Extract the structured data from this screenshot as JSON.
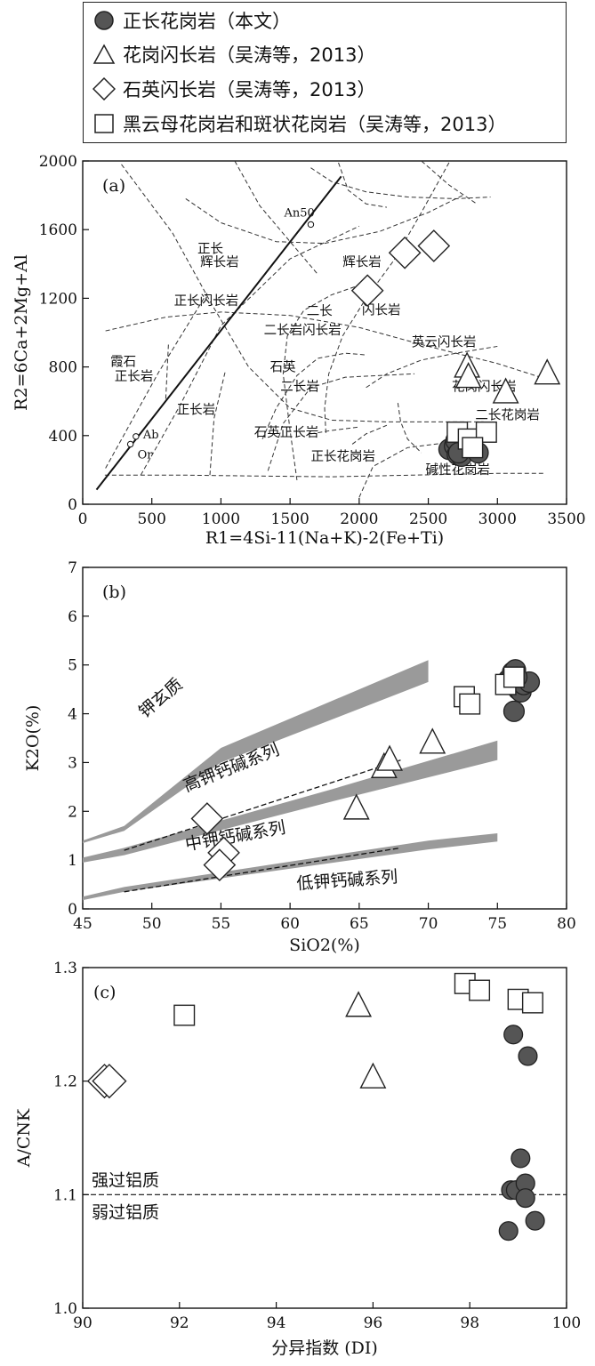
{
  "legend": {
    "items": [
      {
        "symbol": "filled-circle",
        "label": "正长花岗岩（本文）"
      },
      {
        "symbol": "triangle",
        "label": "花岗闪长岩（吴涛等，2013）"
      },
      {
        "symbol": "diamond",
        "label": "石英闪长岩（吴涛等，2013）"
      },
      {
        "symbol": "square",
        "label": "黑云母花岗岩和斑状花岗岩（吴涛等，2013）"
      }
    ]
  },
  "chart_data": [
    {
      "type": "scatter",
      "panel_label": "(a)",
      "xlabel": "R1=4Si-11(Na+K)-2(Fe+Ti)",
      "ylabel": "R2=6Ca+2Mg+Al",
      "xlim": [
        0,
        3500
      ],
      "ylim": [
        0,
        2000
      ],
      "xticks": [
        0,
        500,
        1000,
        1500,
        2000,
        2500,
        3000,
        3500
      ],
      "yticks": [
        0,
        400,
        800,
        1200,
        1600,
        2000
      ],
      "reference_points": [
        {
          "label": "An50",
          "x": 1650,
          "y": 1630
        },
        {
          "label": "Ab",
          "x": 385,
          "y": 395
        },
        {
          "label": "Or",
          "x": 345,
          "y": 350
        }
      ],
      "fields": [
        {
          "label": "正长",
          "x": 830,
          "y": 1465
        },
        {
          "label": "辉长岩",
          "x": 850,
          "y": 1385
        },
        {
          "label": "辉长岩",
          "x": 1880,
          "y": 1385
        },
        {
          "label": "正长闪长岩",
          "x": 660,
          "y": 1160
        },
        {
          "label": "二长",
          "x": 1620,
          "y": 1100
        },
        {
          "label": "闪长岩",
          "x": 2020,
          "y": 1105
        },
        {
          "label": "二长岩闪长岩",
          "x": 1310,
          "y": 990
        },
        {
          "label": "英云闪长岩",
          "x": 2380,
          "y": 920
        },
        {
          "label": "霞石",
          "x": 200,
          "y": 805
        },
        {
          "label": "正长岩",
          "x": 230,
          "y": 720
        },
        {
          "label": "石英",
          "x": 1355,
          "y": 775
        },
        {
          "label": "二长岩",
          "x": 1430,
          "y": 660
        },
        {
          "label": "花岗闪长岩",
          "x": 2670,
          "y": 660
        },
        {
          "label": "正长岩",
          "x": 680,
          "y": 525
        },
        {
          "label": "石英正长岩",
          "x": 1240,
          "y": 395
        },
        {
          "label": "二长花岗岩",
          "x": 2840,
          "y": 495
        },
        {
          "label": "正长花岗岩",
          "x": 1650,
          "y": 255
        },
        {
          "label": "碱性花岗岩",
          "x": 2480,
          "y": 175
        }
      ],
      "series": [
        {
          "name": "正长花岗岩（本文）",
          "marker": "filled-circle",
          "x": [
            2650,
            2690,
            2710,
            2730,
            2760,
            2780,
            2700,
            2740,
            2720,
            2860
          ],
          "y": [
            320,
            340,
            290,
            360,
            310,
            330,
            370,
            280,
            300,
            300
          ]
        },
        {
          "name": "花岗闪长岩（吴涛等，2013）",
          "marker": "triangle",
          "x": [
            2780,
            2790,
            3060,
            3360
          ],
          "y": [
            800,
            740,
            650,
            760
          ]
        },
        {
          "name": "石英闪长岩（吴涛等，2013）",
          "marker": "diamond",
          "x": [
            2060,
            2330,
            2540
          ],
          "y": [
            1245,
            1465,
            1505
          ]
        },
        {
          "name": "黑云母花岗岩和斑状花岗岩（吴涛等，2013）",
          "marker": "square",
          "x": [
            2710,
            2790,
            2920,
            2820
          ],
          "y": [
            420,
            380,
            420,
            330
          ]
        }
      ]
    },
    {
      "type": "scatter",
      "panel_label": "(b)",
      "xlabel": "SiO2(%)",
      "ylabel": "K2O(%)",
      "xlim": [
        45,
        80
      ],
      "ylim": [
        0,
        7
      ],
      "xticks": [
        45,
        50,
        55,
        60,
        65,
        70,
        75,
        80
      ],
      "yticks": [
        0,
        1,
        2,
        3,
        4,
        5,
        6,
        7
      ],
      "series_labels": [
        {
          "label": "钾玄质",
          "x": 49.5,
          "y": 3.9
        },
        {
          "label": "高钾钙碱系列",
          "x": 52.5,
          "y": 2.4
        },
        {
          "label": "中钾钙碱系列",
          "x": 52.5,
          "y": 1.2
        },
        {
          "label": "低钾钙碱系列",
          "x": 60.5,
          "y": 0.4
        }
      ],
      "series": [
        {
          "name": "正长花岗岩（本文）",
          "marker": "filled-circle",
          "x": [
            75.8,
            76.1,
            76.3,
            76.4,
            76.5,
            76.7,
            76.9,
            77.3,
            76.2,
            76.4
          ],
          "y": [
            4.7,
            4.85,
            4.9,
            4.6,
            4.5,
            4.45,
            4.6,
            4.65,
            4.05,
            4.75
          ]
        },
        {
          "name": "花岗闪长岩（吴涛等，2013）",
          "marker": "triangle",
          "x": [
            64.8,
            66.8,
            67.2,
            70.3
          ],
          "y": [
            2.05,
            2.9,
            3.05,
            3.4
          ]
        },
        {
          "name": "石英闪长岩（吴涛等，2013）",
          "marker": "diamond",
          "x": [
            54.0,
            55.2,
            54.9
          ],
          "y": [
            1.85,
            1.15,
            0.9
          ]
        },
        {
          "name": "黑云母花岗岩和斑状花岗岩（吴涛等，2013）",
          "marker": "square",
          "x": [
            72.6,
            73.0,
            75.6,
            76.2
          ],
          "y": [
            4.35,
            4.2,
            4.6,
            4.75
          ]
        }
      ]
    },
    {
      "type": "scatter",
      "panel_label": "(c)",
      "xlabel": "分异指数 (DI)",
      "ylabel": "A/CNK",
      "xlim": [
        90,
        100
      ],
      "ylim": [
        1.0,
        1.3
      ],
      "xticks": [
        90,
        92,
        94,
        96,
        98,
        100
      ],
      "yticks": [
        1.0,
        1.1,
        1.2,
        1.3
      ],
      "reference_line": {
        "y": 1.1,
        "label_above": "强过铝质",
        "label_below": "弱过铝质"
      },
      "series": [
        {
          "name": "正长花岗岩（本文）",
          "marker": "filled-circle",
          "x": [
            98.9,
            99.2,
            99.05,
            98.85,
            98.95,
            99.15,
            99.15,
            99.35,
            98.8
          ],
          "y": [
            1.241,
            1.222,
            1.132,
            1.104,
            1.104,
            1.11,
            1.097,
            1.077,
            1.068
          ]
        },
        {
          "name": "花岗闪长岩（吴涛等，2013）",
          "marker": "triangle",
          "x": [
            95.7,
            96.0
          ],
          "y": [
            1.266,
            1.203
          ]
        },
        {
          "name": "石英闪长岩（吴涛等，2013）",
          "marker": "diamond",
          "x": [
            90.45,
            90.55
          ],
          "y": [
            1.2,
            1.2
          ]
        },
        {
          "name": "黑云母花岗岩和斑状花岗岩（吴涛等，2013）",
          "marker": "square",
          "x": [
            92.1,
            97.9,
            98.2,
            99.0,
            99.3
          ],
          "y": [
            1.258,
            1.286,
            1.28,
            1.272,
            1.269
          ]
        }
      ]
    }
  ]
}
